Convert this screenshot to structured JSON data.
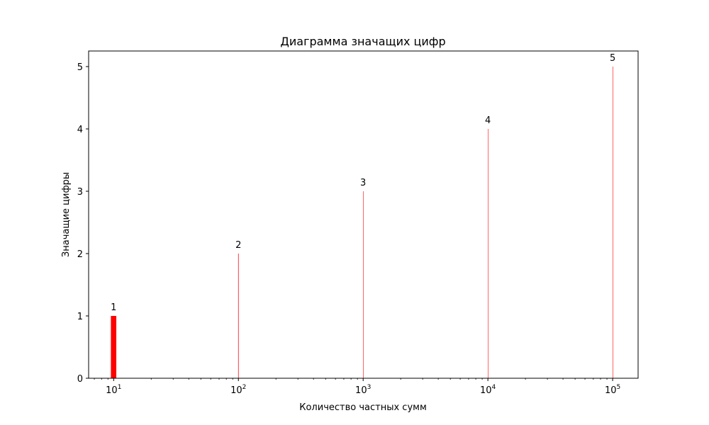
{
  "chart_data": {
    "type": "bar",
    "title": "Диаграмма значащих цифр",
    "xlabel": "Количество частных сумм",
    "ylabel": "Значащие цифры",
    "xscale": "log",
    "xlim": [
      6.3,
      160000
    ],
    "ylim": [
      0,
      5.25
    ],
    "x": [
      10,
      100,
      1000,
      10000,
      100000
    ],
    "values": [
      1,
      2,
      3,
      4,
      5
    ],
    "data_labels": [
      "1",
      "2",
      "3",
      "4",
      "5"
    ],
    "x_ticks": [
      {
        "value": 10,
        "base": "10",
        "exp": "1"
      },
      {
        "value": 100,
        "base": "10",
        "exp": "2"
      },
      {
        "value": 1000,
        "base": "10",
        "exp": "3"
      },
      {
        "value": 10000,
        "base": "10",
        "exp": "4"
      },
      {
        "value": 100000,
        "base": "10",
        "exp": "5"
      }
    ],
    "y_ticks": [
      "0",
      "1",
      "2",
      "3",
      "4",
      "5"
    ],
    "bar_color": "#ff0000",
    "bar_width": 1,
    "grid": false,
    "legend": false
  }
}
